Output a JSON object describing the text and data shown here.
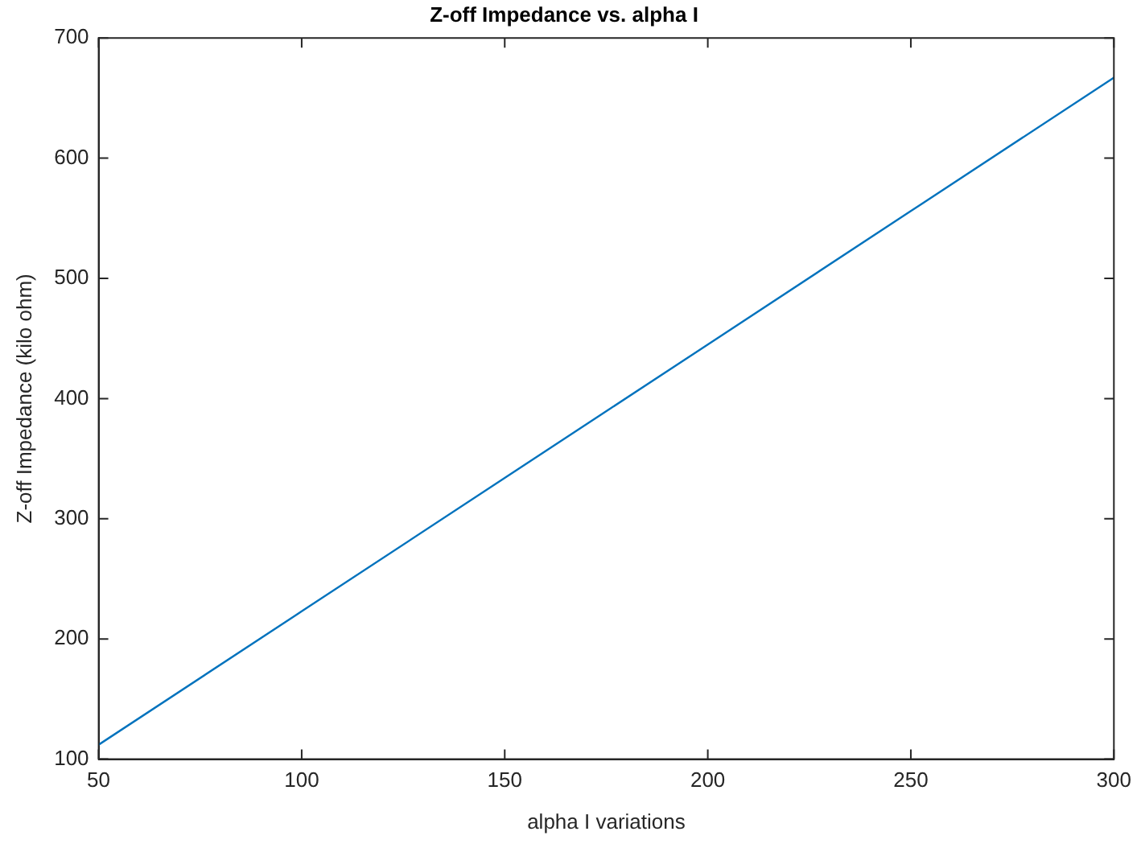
{
  "chart_data": {
    "type": "line",
    "title": "Z-off Impedance vs. alpha I",
    "xlabel": "alpha I variations",
    "ylabel": "Z-off Impedance (kilo ohm)",
    "x": [
      50,
      100,
      150,
      200,
      250,
      300
    ],
    "series": [
      {
        "color": "#0072bd",
        "values": [
          112,
          223,
          334,
          445,
          556,
          667
        ]
      }
    ],
    "xlim": [
      50,
      300
    ],
    "xticks": [
      50,
      100,
      150,
      200,
      250,
      300
    ],
    "ylim": [
      100,
      700
    ],
    "yticks": [
      100,
      200,
      300,
      400,
      500,
      600,
      700
    ],
    "grid": false,
    "legend": false,
    "marker": "none",
    "line_style": "solid"
  }
}
